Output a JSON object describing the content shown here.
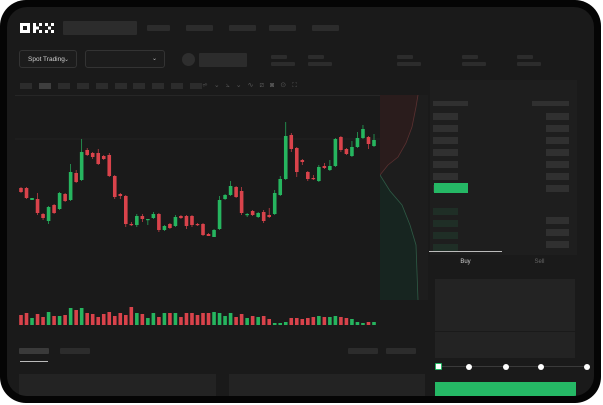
{
  "header": {
    "logo": "OKX"
  },
  "market_bar": {
    "trade_type": "Spot Trading",
    "pair_select": ""
  },
  "trade_panel": {
    "tabs": [
      {
        "label": "Buy",
        "active": true
      },
      {
        "label": "Sell",
        "active": false
      }
    ],
    "slider_percent": 0
  },
  "colors": {
    "up": "#26b55f",
    "down": "#d9434b",
    "accent": "#25b865",
    "background": "#1a1a1a"
  },
  "icons": [
    "okx-logo",
    "chevron-down-icon",
    "indicator-icon",
    "trend-line-icon",
    "ruler-icon",
    "camera-icon",
    "settings-icon",
    "fullscreen-icon",
    "orderbook-both-icon",
    "orderbook-bids-icon",
    "orderbook-asks-icon"
  ],
  "chart_data": {
    "type": "candlestick",
    "candles": [
      [
        49,
        50,
        44,
        45
      ],
      [
        49,
        50,
        38,
        39
      ],
      [
        37,
        39,
        37,
        39
      ],
      [
        38,
        44,
        22,
        24
      ],
      [
        23,
        24,
        17,
        19
      ],
      [
        16,
        31,
        13,
        30
      ],
      [
        32,
        33,
        23,
        24
      ],
      [
        28,
        45,
        27,
        44
      ],
      [
        43,
        44,
        35,
        36
      ],
      [
        37,
        73,
        36,
        65
      ],
      [
        64,
        67,
        54,
        55
      ],
      [
        57,
        98,
        56,
        85
      ],
      [
        87,
        89,
        81,
        82
      ],
      [
        84,
        85,
        78,
        80
      ],
      [
        84,
        88,
        72,
        73
      ],
      [
        81,
        82,
        77,
        78
      ],
      [
        82,
        84,
        60,
        61
      ],
      [
        61,
        62,
        38,
        40
      ],
      [
        43,
        44,
        38,
        41
      ],
      [
        41,
        42,
        10,
        13
      ],
      [
        13,
        15,
        11,
        12
      ],
      [
        12,
        23,
        10,
        21
      ],
      [
        21,
        23,
        15,
        18
      ],
      [
        17,
        18,
        12,
        18
      ],
      [
        19,
        25,
        18,
        23
      ],
      [
        23,
        24,
        5,
        7
      ],
      [
        7,
        12,
        6,
        11
      ],
      [
        13,
        14,
        8,
        9
      ],
      [
        11,
        22,
        10,
        20
      ],
      [
        21,
        22,
        18,
        19
      ],
      [
        21,
        22,
        8,
        11
      ],
      [
        21,
        22,
        10,
        12
      ],
      [
        13,
        14,
        11,
        12
      ],
      [
        13,
        14,
        1,
        2
      ],
      [
        3,
        4,
        1,
        1
      ],
      [
        0,
        8,
        0,
        7
      ],
      [
        8,
        41,
        7,
        37
      ],
      [
        38,
        43,
        37,
        42
      ],
      [
        42,
        56,
        41,
        51
      ],
      [
        50,
        51,
        39,
        40
      ],
      [
        46,
        50,
        22,
        24
      ],
      [
        22,
        24,
        20,
        23
      ],
      [
        26,
        27,
        21,
        22
      ],
      [
        20,
        25,
        19,
        24
      ],
      [
        25,
        27,
        14,
        16
      ],
      [
        22,
        29,
        19,
        20
      ],
      [
        23,
        47,
        22,
        44
      ],
      [
        42,
        61,
        41,
        58
      ],
      [
        58,
        115,
        57,
        101
      ],
      [
        102,
        104,
        85,
        88
      ],
      [
        89,
        90,
        60,
        65
      ],
      [
        77,
        78,
        72,
        75
      ],
      [
        65,
        66,
        56,
        58
      ],
      [
        59,
        62,
        57,
        58
      ],
      [
        56,
        72,
        55,
        70
      ],
      [
        71,
        74,
        68,
        69
      ],
      [
        67,
        77,
        66,
        71
      ],
      [
        71,
        99,
        70,
        98
      ],
      [
        100,
        101,
        85,
        87
      ],
      [
        88,
        89,
        82,
        83
      ],
      [
        81,
        96,
        80,
        90
      ],
      [
        90,
        105,
        89,
        99
      ],
      [
        99,
        112,
        98,
        108
      ],
      [
        100,
        101,
        88,
        93
      ],
      [
        91,
        103,
        90,
        97
      ]
    ],
    "volume": [
      10,
      12,
      7,
      11,
      8,
      13,
      9,
      9,
      10,
      17,
      15,
      17,
      12,
      11,
      8,
      11,
      13,
      9,
      12,
      10,
      18,
      12,
      11,
      7,
      12,
      8,
      12,
      12,
      12,
      8,
      12,
      12,
      10,
      12,
      12,
      13,
      12,
      9,
      12,
      8,
      11,
      7,
      9,
      8,
      9,
      6,
      2,
      2,
      3,
      7,
      7,
      6,
      7,
      8,
      9,
      8,
      8,
      9,
      8,
      7,
      6,
      3,
      2,
      3,
      3
    ]
  }
}
